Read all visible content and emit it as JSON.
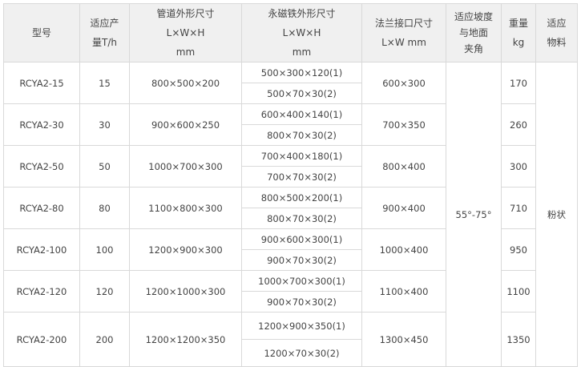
{
  "headers": {
    "model": "型号",
    "capacity": [
      "适应产",
      "量T/h"
    ],
    "pipe": [
      "管道外形尺寸",
      "L×W×H",
      "mm"
    ],
    "magnet": [
      "永磁铁外形尺寸",
      "L×W×H",
      "mm"
    ],
    "flange": [
      "法兰接口尺寸",
      "L×W  mm"
    ],
    "angle": [
      "适应坡度",
      "与地面",
      "夹角"
    ],
    "weight": [
      "重量",
      "kg"
    ],
    "material": [
      "适应",
      "物料"
    ]
  },
  "angle_value": "55°-75°",
  "material_value": "粉状",
  "rows": [
    {
      "model": "RCYA2-15",
      "capacity": "15",
      "pipe": "800×500×200",
      "magnet1": "500×300×120(1)",
      "magnet2": "500×70×30(2)",
      "flange": "600×300",
      "weight": "170"
    },
    {
      "model": "RCYA2-30",
      "capacity": "30",
      "pipe": "900×600×250",
      "magnet1": "600×400×140(1)",
      "magnet2": "800×70×30(2)",
      "flange": "700×350",
      "weight": "260"
    },
    {
      "model": "RCYA2-50",
      "capacity": "50",
      "pipe": "1000×700×300",
      "magnet1": "700×400×180(1)",
      "magnet2": "700×70×30(2)",
      "flange": "800×400",
      "weight": "300"
    },
    {
      "model": "RCYA2-80",
      "capacity": "80",
      "pipe": "1100×800×300",
      "magnet1": "800×500×200(1)",
      "magnet2": "800×70×30(2)",
      "flange": "900×400",
      "weight": "710"
    },
    {
      "model": "RCYA2-100",
      "capacity": "100",
      "pipe": "1200×900×300",
      "magnet1": "900×600×300(1)",
      "magnet2": "900×70×30(2)",
      "flange": "1000×400",
      "weight": "950"
    },
    {
      "model": "RCYA2-120",
      "capacity": "120",
      "pipe": "1200×1000×300",
      "magnet1": "1000×700×300(1)",
      "magnet2": "900×70×30(2)",
      "flange": "1100×400",
      "weight": "1100"
    },
    {
      "model": "RCYA2-200",
      "capacity": "200",
      "pipe": "1200×1200×350",
      "magnet1": "1200×900×350(1)",
      "magnet2": "1200×70×30(2)",
      "flange": "1300×450",
      "weight": "1350"
    }
  ]
}
